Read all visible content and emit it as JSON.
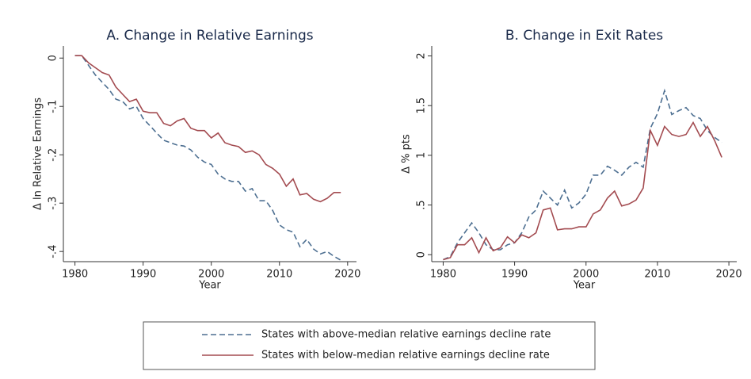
{
  "chart_data": [
    {
      "type": "line",
      "title": "A. Change in Relative Earnings",
      "xlabel": "Year",
      "ylabel": "Δ ln Relative Earnings",
      "x": [
        1980,
        1981,
        1982,
        1983,
        1984,
        1985,
        1986,
        1987,
        1988,
        1989,
        1990,
        1991,
        1992,
        1993,
        1994,
        1995,
        1996,
        1997,
        1998,
        1999,
        2000,
        2001,
        2002,
        2003,
        2004,
        2005,
        2006,
        2007,
        2008,
        2009,
        2010,
        2011,
        2012,
        2013,
        2014,
        2015,
        2016,
        2017,
        2018,
        2019
      ],
      "series": [
        {
          "name": "States with above-median relative earnings decline rate",
          "color": "#4d6f91",
          "dash": true,
          "values": [
            0.005,
            0.005,
            -0.015,
            -0.035,
            -0.05,
            -0.065,
            -0.085,
            -0.09,
            -0.105,
            -0.1,
            -0.125,
            -0.14,
            -0.155,
            -0.17,
            -0.175,
            -0.18,
            -0.182,
            -0.19,
            -0.205,
            -0.215,
            -0.22,
            -0.24,
            -0.25,
            -0.255,
            -0.255,
            -0.275,
            -0.27,
            -0.295,
            -0.295,
            -0.315,
            -0.345,
            -0.355,
            -0.36,
            -0.39,
            -0.375,
            -0.395,
            -0.405,
            -0.4,
            -0.41,
            -0.418
          ]
        },
        {
          "name": "States with below-median relative earnings decline rate",
          "color": "#a34b50",
          "dash": false,
          "values": [
            0.005,
            0.005,
            -0.01,
            -0.02,
            -0.03,
            -0.035,
            -0.06,
            -0.075,
            -0.09,
            -0.085,
            -0.11,
            -0.113,
            -0.113,
            -0.135,
            -0.14,
            -0.13,
            -0.125,
            -0.145,
            -0.15,
            -0.15,
            -0.165,
            -0.155,
            -0.175,
            -0.18,
            -0.183,
            -0.195,
            -0.192,
            -0.2,
            -0.22,
            -0.228,
            -0.24,
            -0.265,
            -0.25,
            -0.283,
            -0.28,
            -0.292,
            -0.297,
            -0.29,
            -0.278,
            -0.278
          ]
        }
      ],
      "xlim": [
        1978.3,
        2021.3
      ],
      "xticks": [
        1980,
        1990,
        2000,
        2010,
        2020
      ],
      "ylim": [
        -0.421,
        0.025
      ],
      "yticks": [
        {
          "value": 0,
          "label": "0"
        },
        {
          "value": -0.1,
          "label": "-.1"
        },
        {
          "value": -0.2,
          "label": "-.2"
        },
        {
          "value": -0.3,
          "label": "-.3"
        },
        {
          "value": -0.4,
          "label": "-.4"
        }
      ]
    },
    {
      "type": "line",
      "title": "B. Change in Exit Rates",
      "xlabel": "Year",
      "ylabel": "Δ % pts",
      "x": [
        1980,
        1981,
        1982,
        1983,
        1984,
        1985,
        1986,
        1987,
        1988,
        1989,
        1990,
        1991,
        1992,
        1993,
        1994,
        1995,
        1996,
        1997,
        1998,
        1999,
        2000,
        2001,
        2002,
        2003,
        2004,
        2005,
        2006,
        2007,
        2008,
        2009,
        2010,
        2011,
        2012,
        2013,
        2014,
        2015,
        2016,
        2017,
        2018,
        2019
      ],
      "series": [
        {
          "color": "#4d6f91",
          "dash": true,
          "values": [
            -0.05,
            -0.02,
            0.12,
            0.22,
            0.32,
            0.22,
            0.1,
            0.05,
            0.05,
            0.1,
            0.12,
            0.22,
            0.38,
            0.45,
            0.64,
            0.57,
            0.5,
            0.65,
            0.47,
            0.52,
            0.61,
            0.8,
            0.8,
            0.89,
            0.85,
            0.8,
            0.88,
            0.93,
            0.88,
            1.27,
            1.42,
            1.65,
            1.41,
            1.45,
            1.48,
            1.4,
            1.37,
            1.25,
            1.18,
            1.13
          ]
        },
        {
          "color": "#a34b50",
          "dash": false,
          "values": [
            -0.05,
            -0.03,
            0.1,
            0.1,
            0.17,
            0.02,
            0.17,
            0.04,
            0.07,
            0.18,
            0.12,
            0.2,
            0.17,
            0.22,
            0.45,
            0.47,
            0.25,
            0.26,
            0.26,
            0.28,
            0.28,
            0.41,
            0.45,
            0.57,
            0.64,
            0.49,
            0.51,
            0.55,
            0.67,
            1.25,
            1.1,
            1.29,
            1.21,
            1.19,
            1.21,
            1.33,
            1.19,
            1.29,
            1.15,
            0.98
          ]
        }
      ],
      "xlim": [
        1978.4,
        2021.1
      ],
      "xticks": [
        1980,
        1990,
        2000,
        2010,
        2020
      ],
      "ylim": [
        -0.07,
        2.1
      ],
      "yticks": [
        0,
        {
          "value": 0.5,
          "label": ".5"
        },
        1,
        {
          "value": 1.5,
          "label": "1.5"
        },
        2
      ]
    }
  ]
}
